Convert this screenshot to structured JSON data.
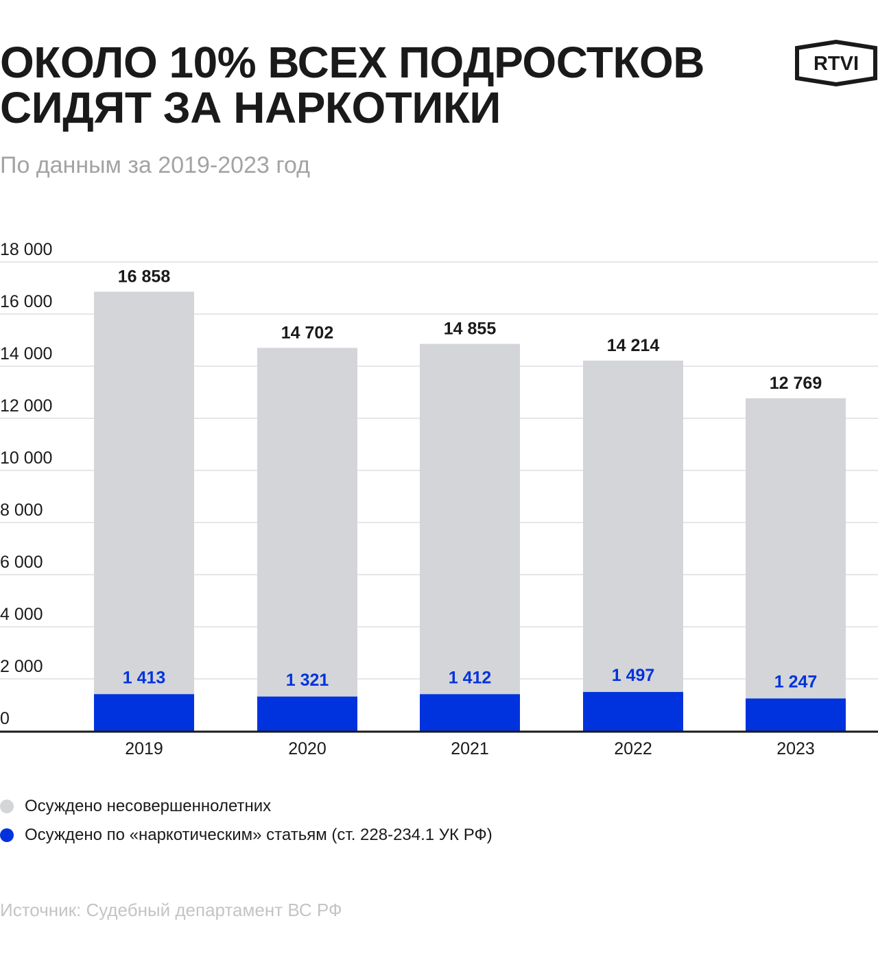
{
  "header": {
    "title_line1": "ОКОЛО 10% ВСЕХ ПОДРОСТКОВ",
    "title_line2": "СИДЯТ ЗА НАРКОТИКИ",
    "subtitle": "По данным за 2019-2023 год",
    "logo_text": "RTVI"
  },
  "legend": {
    "items": [
      {
        "label": "Осуждено несовершеннолетних",
        "color": "#d4d5d9"
      },
      {
        "label": "Осуждено по «наркотическим» статьям (ст. 228-234.1 УК РФ)",
        "color": "#0033dd"
      }
    ]
  },
  "footer": {
    "source": "Источник: Судебный департамент ВС РФ"
  },
  "chart_data": {
    "type": "bar",
    "stacking": "overlaid",
    "categories": [
      "2019",
      "2020",
      "2021",
      "2022",
      "2023"
    ],
    "series": [
      {
        "name": "Осуждено несовершеннолетних",
        "color": "#d4d5d9",
        "values": [
          16858,
          14702,
          14855,
          14214,
          12769
        ],
        "labels": [
          "16 858",
          "14 702",
          "14 855",
          "14 214",
          "12 769"
        ],
        "label_color": "#1a1a1a"
      },
      {
        "name": "Осуждено по «наркотическим» статьям (ст. 228-234.1 УК РФ)",
        "color": "#0033dd",
        "values": [
          1413,
          1321,
          1412,
          1497,
          1247
        ],
        "labels": [
          "1 413",
          "1 321",
          "1 412",
          "1 497",
          "1 247"
        ],
        "label_color": "#0033dd"
      }
    ],
    "ylim": [
      0,
      18000
    ],
    "yticks": [
      0,
      2000,
      4000,
      6000,
      8000,
      10000,
      12000,
      14000,
      16000,
      18000
    ],
    "ytick_labels": [
      "0",
      "2 000",
      "4 000",
      "6 000",
      "8 000",
      "10 000",
      "12 000",
      "14 000",
      "16 000",
      "18 000"
    ],
    "grid": true,
    "legend_position": "bottom-left"
  }
}
